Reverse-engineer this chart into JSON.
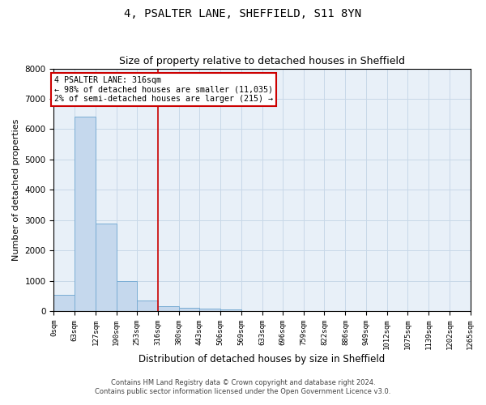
{
  "title": "4, PSALTER LANE, SHEFFIELD, S11 8YN",
  "subtitle": "Size of property relative to detached houses in Sheffield",
  "xlabel": "Distribution of detached houses by size in Sheffield",
  "ylabel": "Number of detached properties",
  "bar_color": "#c5d8ed",
  "bar_edge_color": "#7aadd4",
  "grid_color": "#c8d8e8",
  "background_color": "#e8f0f8",
  "bin_edges": [
    0,
    63,
    127,
    190,
    253,
    316,
    380,
    443,
    506,
    569,
    633,
    696,
    759,
    822,
    886,
    949,
    1012,
    1075,
    1139,
    1202,
    1265
  ],
  "bar_heights": [
    550,
    6400,
    2900,
    1000,
    350,
    150,
    100,
    70,
    50,
    0,
    0,
    0,
    0,
    0,
    0,
    0,
    0,
    0,
    0,
    0
  ],
  "red_line_x": 316,
  "annotation_line1": "4 PSALTER LANE: 316sqm",
  "annotation_line2": "← 98% of detached houses are smaller (11,035)",
  "annotation_line3": "2% of semi-detached houses are larger (215) →",
  "ylim": [
    0,
    8000
  ],
  "yticks": [
    0,
    1000,
    2000,
    3000,
    4000,
    5000,
    6000,
    7000,
    8000
  ],
  "footer_line1": "Contains HM Land Registry data © Crown copyright and database right 2024.",
  "footer_line2": "Contains public sector information licensed under the Open Government Licence v3.0.",
  "x_tick_labels": [
    "0sqm",
    "63sqm",
    "127sqm",
    "190sqm",
    "253sqm",
    "316sqm",
    "380sqm",
    "443sqm",
    "506sqm",
    "569sqm",
    "633sqm",
    "696sqm",
    "759sqm",
    "822sqm",
    "886sqm",
    "949sqm",
    "1012sqm",
    "1075sqm",
    "1139sqm",
    "1202sqm",
    "1265sqm"
  ]
}
